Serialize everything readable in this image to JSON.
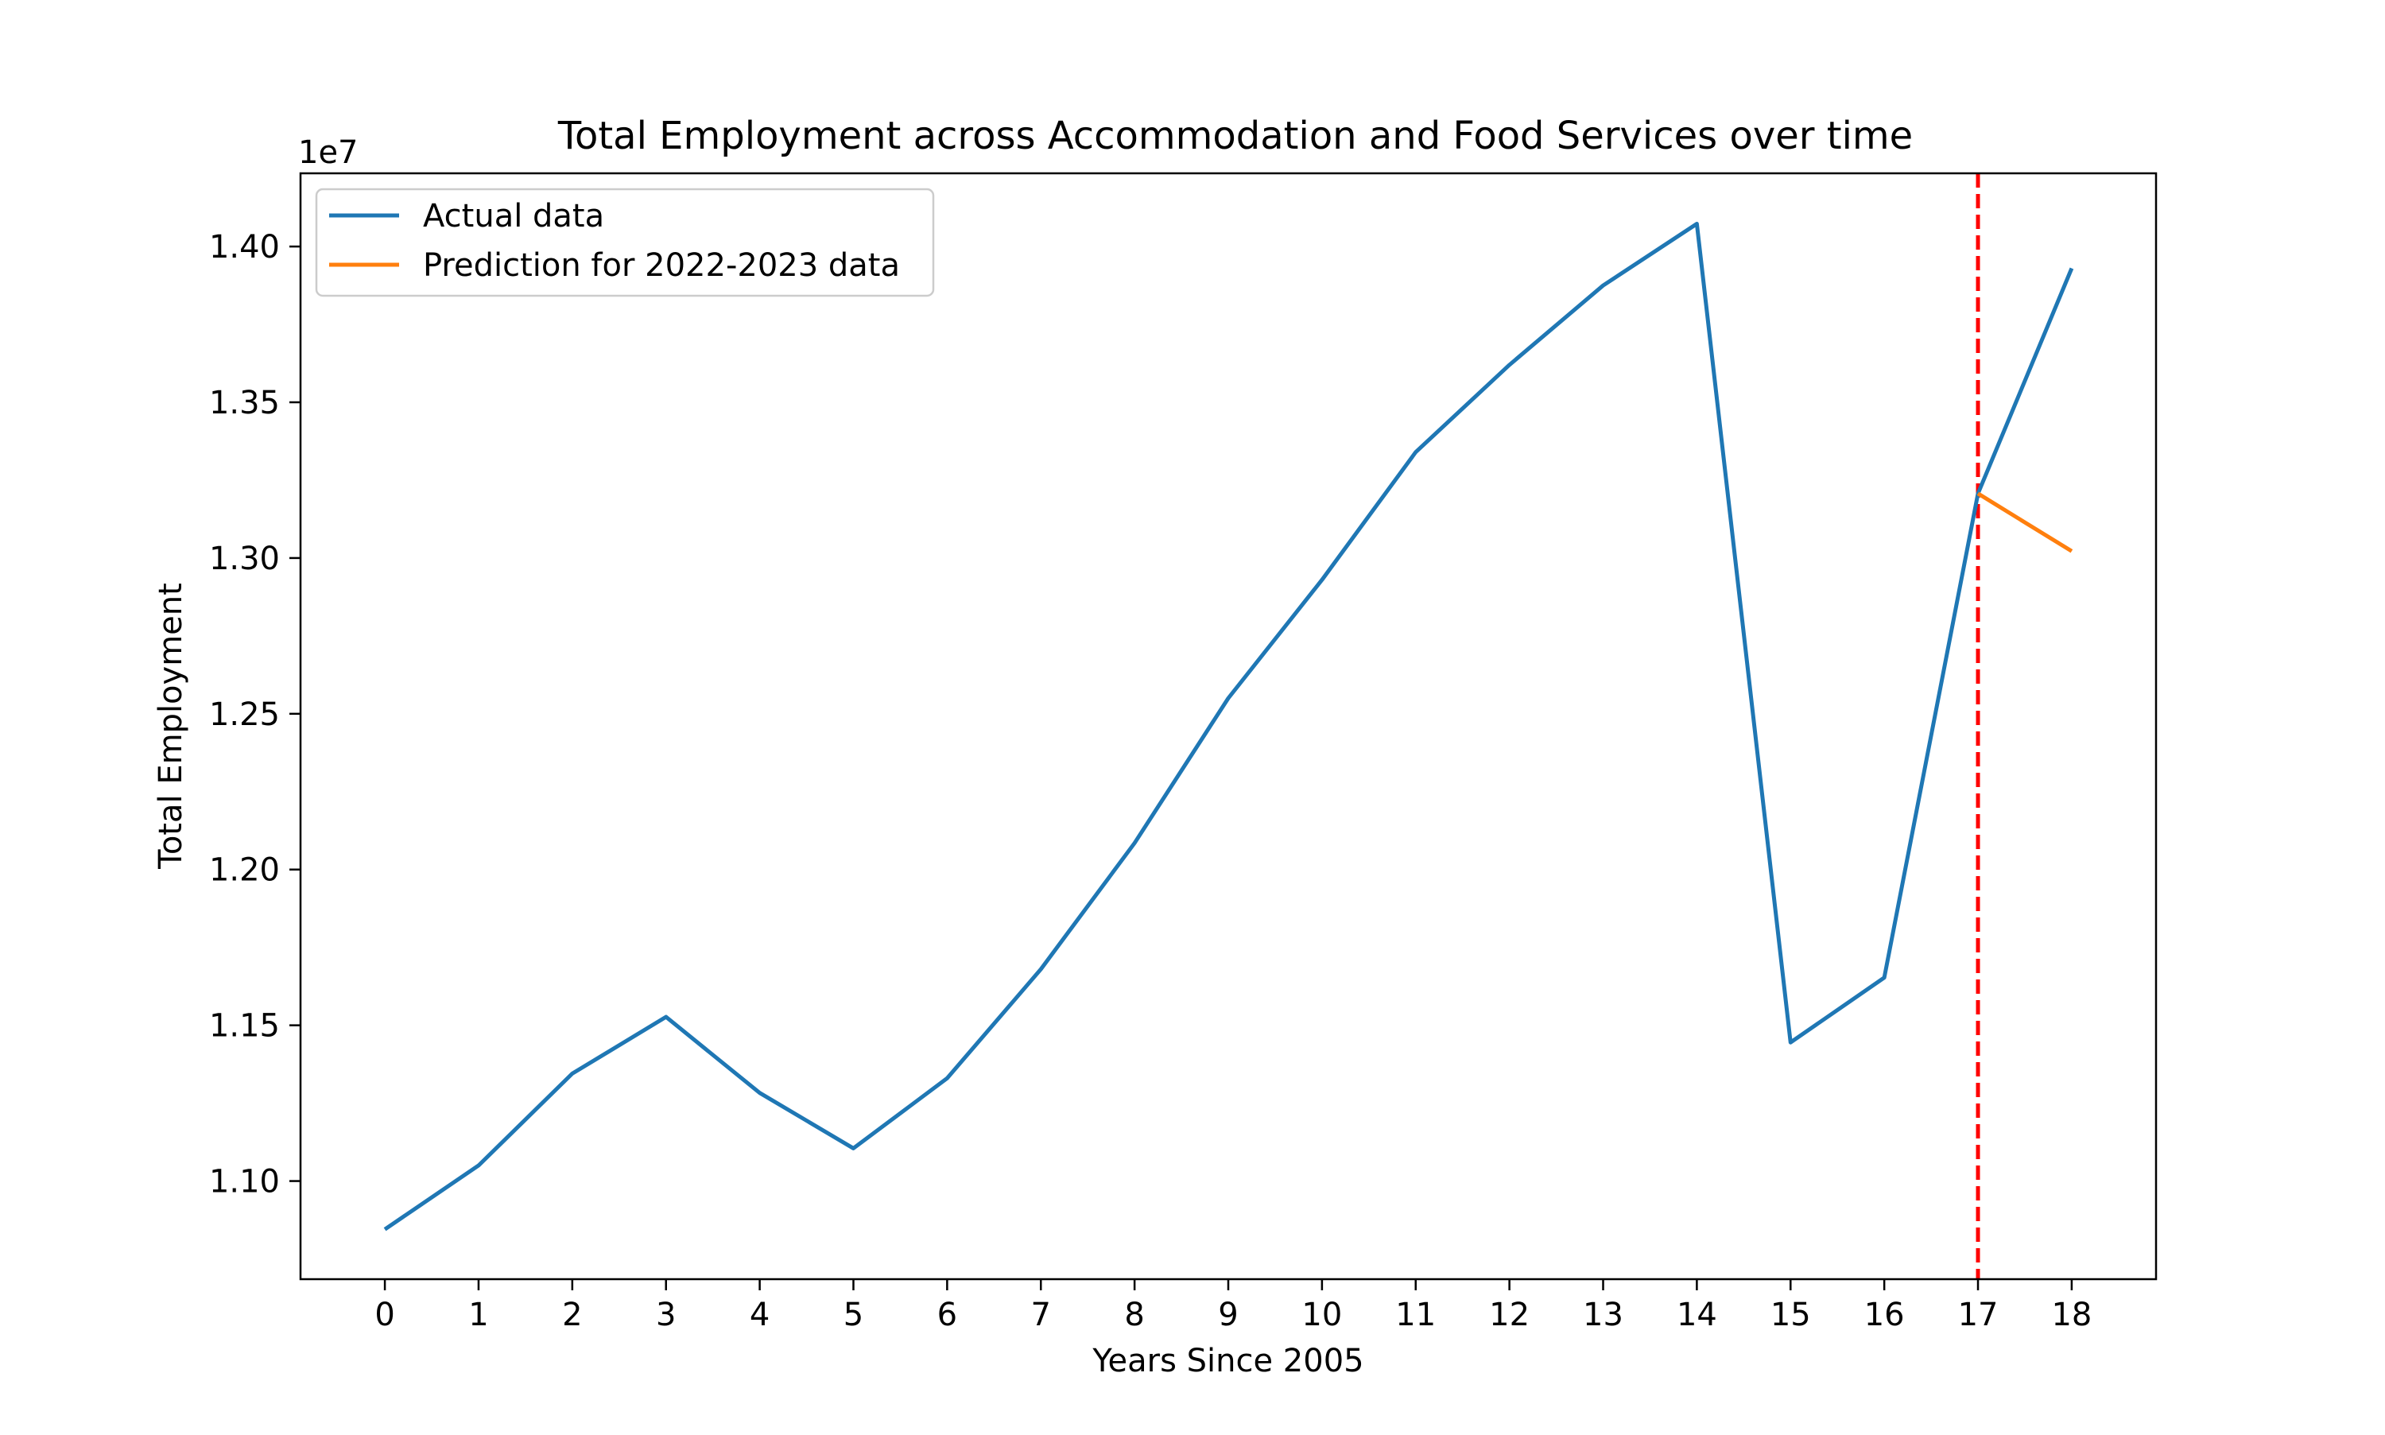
{
  "chart_data": {
    "type": "line",
    "title": "Total Employment across Accommodation and Food Services over time",
    "xlabel": "Years Since 2005",
    "ylabel": "Total Employment",
    "y_offset_label": "1e7",
    "xlim": [
      -0.9,
      18.9
    ],
    "ylim": [
      1.0685,
      1.4235
    ],
    "y_scale_factor": 10000000,
    "xticks": [
      0,
      1,
      2,
      3,
      4,
      5,
      6,
      7,
      8,
      9,
      10,
      11,
      12,
      13,
      14,
      15,
      16,
      17,
      18
    ],
    "yticks": [
      1.1,
      1.15,
      1.2,
      1.25,
      1.3,
      1.35,
      1.4
    ],
    "ytick_labels": [
      "1.10",
      "1.15",
      "1.20",
      "1.25",
      "1.30",
      "1.35",
      "1.40"
    ],
    "grid": false,
    "legend_position": "upper left",
    "series": [
      {
        "name": "Actual data",
        "color": "#1f77b4",
        "x": [
          0,
          1,
          2,
          3,
          4,
          5,
          6,
          7,
          8,
          9,
          10,
          11,
          12,
          13,
          14,
          15,
          16,
          17,
          18
        ],
        "values": [
          1.0845,
          1.105,
          1.1345,
          1.1527,
          1.1283,
          1.1105,
          1.133,
          1.168,
          1.2085,
          1.255,
          1.293,
          1.334,
          1.362,
          1.3875,
          1.4073,
          1.1445,
          1.1653,
          1.3207,
          1.393
        ]
      },
      {
        "name": "Prediction for 2022-2023 data",
        "color": "#ff7f0e",
        "x": [
          17,
          18
        ],
        "values": [
          1.3207,
          1.3022
        ]
      }
    ],
    "vertical_line": {
      "x": 17,
      "color": "#ff0000",
      "style": "dashed"
    }
  }
}
